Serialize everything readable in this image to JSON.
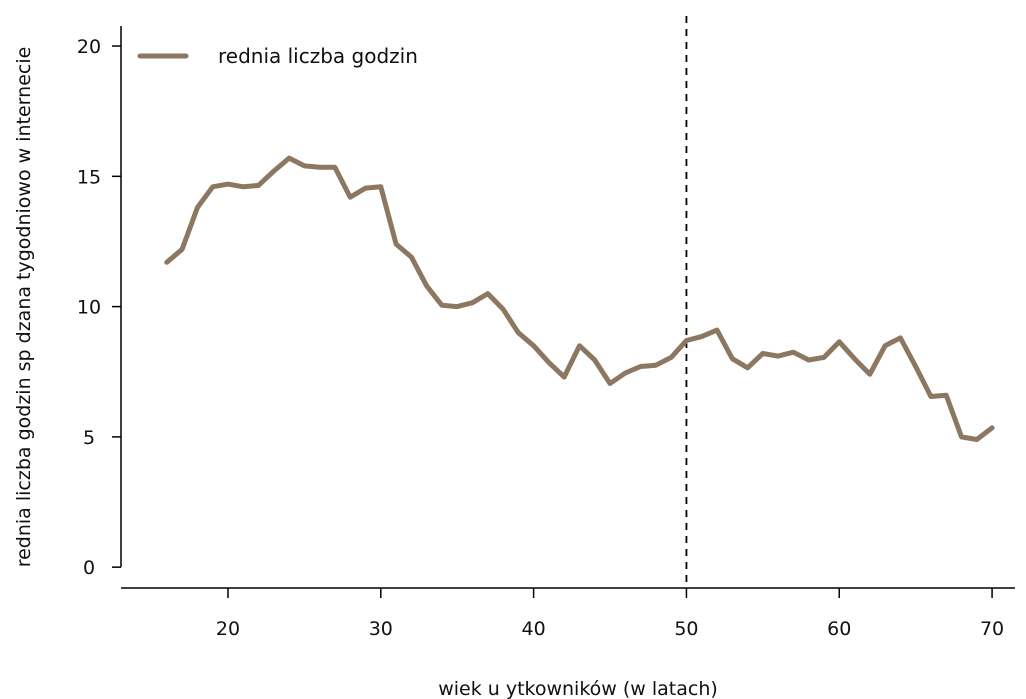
{
  "chart_data": {
    "type": "line",
    "title": "",
    "xlabel": "wiek u  ytkowników (w latach)",
    "ylabel": "rednia liczba godzin sp  dzana tygodniowo w internecie",
    "xlim": [
      13,
      71.5
    ],
    "ylim": [
      -0.8,
      21
    ],
    "xticks": [
      20,
      30,
      40,
      50,
      60,
      70
    ],
    "yticks": [
      0,
      5,
      10,
      15,
      20
    ],
    "grid": false,
    "legend_position": "top-left",
    "reference_line": {
      "x": 50,
      "style": "dashed",
      "color": "#000000"
    },
    "series": [
      {
        "name": "rednia liczba godzin",
        "color": "#8C7761",
        "x": [
          16,
          17,
          18,
          19,
          20,
          21,
          22,
          23,
          24,
          25,
          26,
          27,
          28,
          29,
          30,
          31,
          32,
          33,
          34,
          35,
          36,
          37,
          38,
          39,
          40,
          41,
          42,
          43,
          44,
          45,
          46,
          47,
          48,
          49,
          50,
          51,
          52,
          53,
          54,
          55,
          56,
          57,
          58,
          59,
          60,
          61,
          62,
          63,
          64,
          65,
          66,
          67,
          68,
          69,
          70
        ],
        "values": [
          11.7,
          12.2,
          13.8,
          14.6,
          14.7,
          14.6,
          14.65,
          15.2,
          15.7,
          15.4,
          15.35,
          15.35,
          14.2,
          14.55,
          14.6,
          12.4,
          11.9,
          10.8,
          10.05,
          10.0,
          10.15,
          10.5,
          9.9,
          9.0,
          8.5,
          7.85,
          7.3,
          8.5,
          7.95,
          7.05,
          7.45,
          7.7,
          7.75,
          8.05,
          8.7,
          8.85,
          9.1,
          8.0,
          7.65,
          8.2,
          8.1,
          8.25,
          7.95,
          8.05,
          8.65,
          8.0,
          7.4,
          8.5,
          8.8,
          7.7,
          6.55,
          6.6,
          5.0,
          4.9,
          5.35
        ]
      }
    ]
  }
}
